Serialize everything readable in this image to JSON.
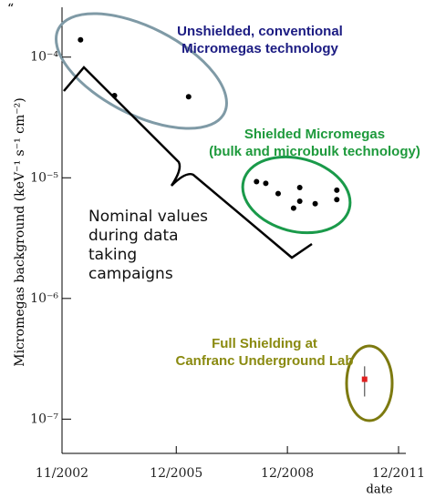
{
  "chart_data": {
    "type": "scatter",
    "corner_mark": "“",
    "y_label": "Micromegas background (keV⁻¹ s⁻¹ cm⁻²)",
    "x_label": "date",
    "xlim": [
      "2002-11",
      "2011-12"
    ],
    "xticks": [
      {
        "value": "2002-11",
        "label": "11/2002"
      },
      {
        "value": "2005-12",
        "label": "12/2005"
      },
      {
        "value": "2008-12",
        "label": "12/2008"
      },
      {
        "value": "2011-12",
        "label": "12/2011"
      }
    ],
    "ylim": [
      5.2e-08,
      0.00025
    ],
    "log_y": true,
    "yticks": [
      {
        "value": 1e-07,
        "label": "10⁻⁷"
      },
      {
        "value": 1e-06,
        "label": "10⁻⁶"
      },
      {
        "value": 1e-05,
        "label": "10⁻⁵"
      },
      {
        "value": 0.0001,
        "label": "10⁻⁴"
      }
    ],
    "series": [
      {
        "label_lines": [
          "Unshielded, conventional",
          "Micromegas technology"
        ],
        "color": "#000000",
        "text_color": "#1b1b82",
        "x": [
          "2003-05",
          "2004-04",
          "2006-04"
        ],
        "values": [
          0.000139,
          4.8e-05,
          4.7e-05
        ]
      },
      {
        "label_lines": [
          "Shielded Micromegas",
          "(bulk and microbulk technology)"
        ],
        "color": "#000000",
        "text_color": "#1e9a3c",
        "x": [
          "2008-02",
          "2008-05",
          "2008-09",
          "2009-02",
          "2009-04",
          "2009-04",
          "2009-09",
          "2010-04",
          "2010-04"
        ],
        "values": [
          9.3e-06,
          9e-06,
          7.4e-06,
          5.6e-06,
          8.3e-06,
          6.4e-06,
          6.1e-06,
          7.9e-06,
          6.6e-06
        ]
      },
      {
        "label_lines": [
          "Full Shielding at",
          "Canfranc Underground Lab"
        ],
        "color": "#e02020",
        "text_color": "#8a8a10",
        "x": [
          "2011-01"
        ],
        "values": [
          2.14e-07
        ],
        "errors": [
          6e-08
        ]
      }
    ],
    "note_lines": [
      "Nominal values",
      "during data",
      "taking",
      "campaigns"
    ]
  }
}
